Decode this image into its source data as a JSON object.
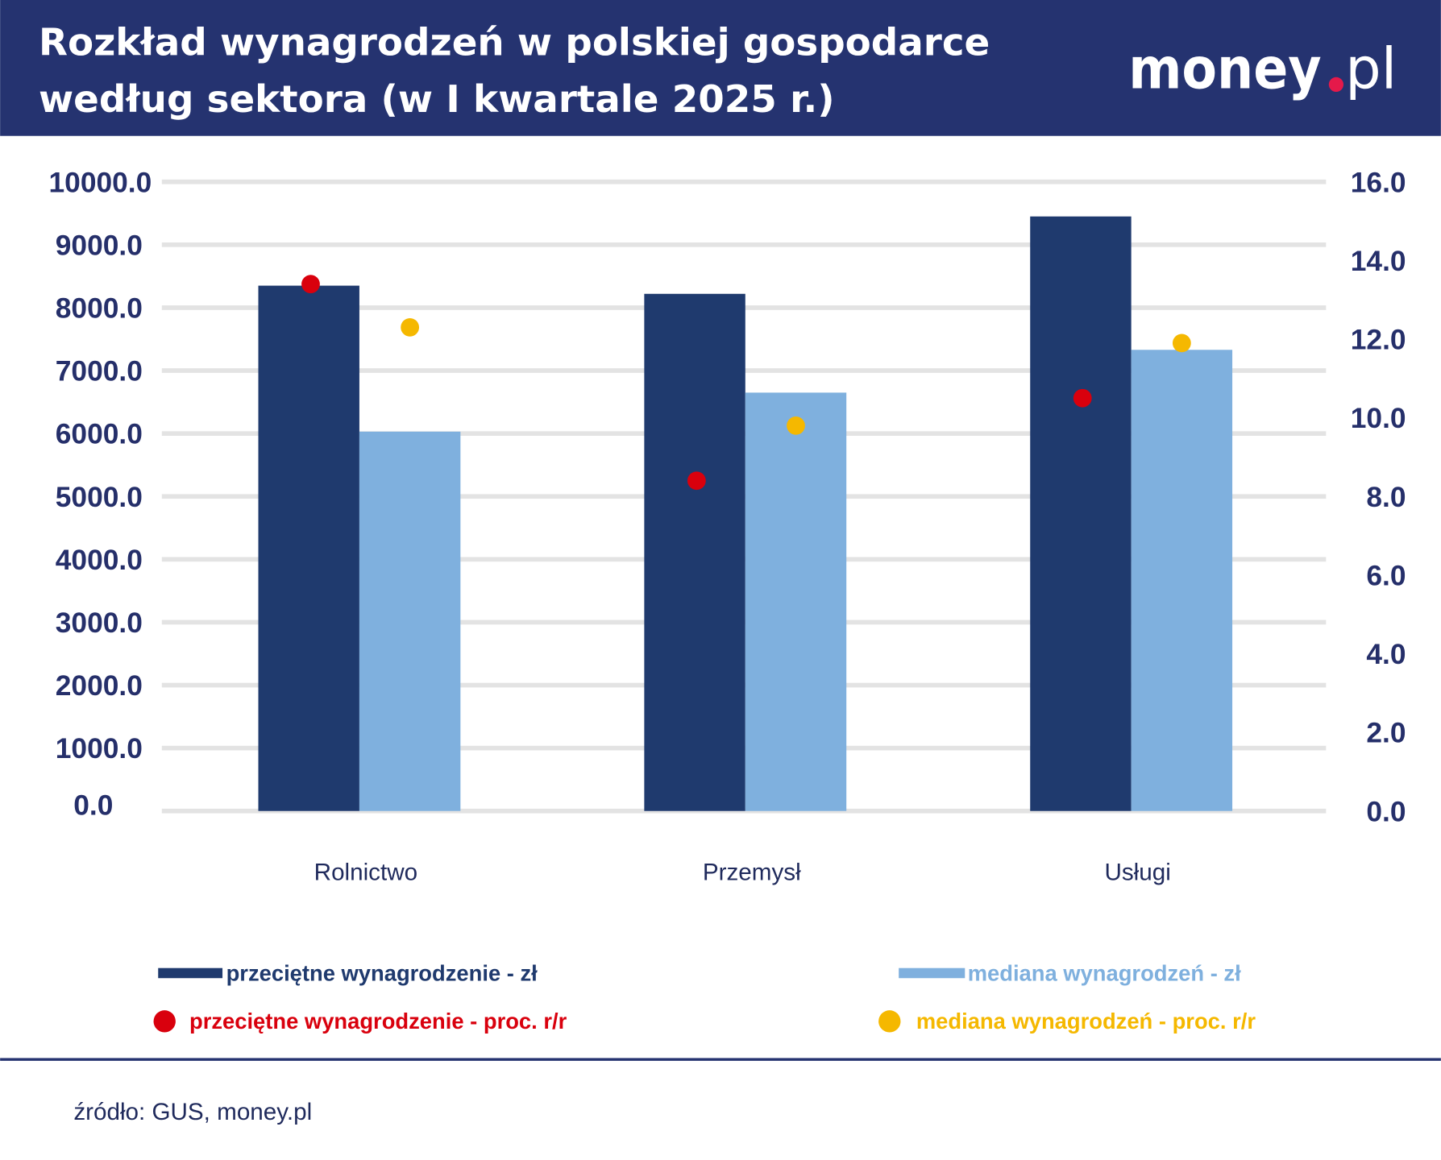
{
  "header": {
    "title_line1": "Rozkład wynagrodzeń w polskiej gospodarce",
    "title_line2": "według sektora (w I kwartale 2025 r.)",
    "logo_text": "money.pl"
  },
  "colors": {
    "header_bg": "#253370",
    "avg_bar": "#1f3a6e",
    "median_bar": "#7fb0de",
    "avg_pct": "#d9000d",
    "median_pct": "#f5b800",
    "grid": "#e3e3e3"
  },
  "chart_data": {
    "type": "bar",
    "categories": [
      "Rolnictwo",
      "Przemysł",
      "Usługi"
    ],
    "series": [
      {
        "name": "przeciętne wynagrodzenie - zł",
        "type": "bar",
        "axis": "left",
        "values": [
          8350,
          8220,
          9450
        ]
      },
      {
        "name": "mediana wynagrodzeń - zł",
        "type": "bar",
        "axis": "left",
        "values": [
          6030,
          6650,
          7330
        ]
      },
      {
        "name": "przeciętne wynagrodzenie - proc. r/r",
        "type": "scatter",
        "axis": "right",
        "values": [
          13.4,
          8.4,
          10.5
        ]
      },
      {
        "name": "mediana wynagrodzeń - proc. r/r",
        "type": "scatter",
        "axis": "right",
        "values": [
          12.3,
          9.8,
          11.9
        ]
      }
    ],
    "y_left": {
      "range": [
        0,
        10000
      ],
      "ticks": [
        "0.0",
        "1000.0",
        "2000.0",
        "3000.0",
        "4000.0",
        "5000.0",
        "6000.0",
        "7000.0",
        "8000.0",
        "9000.0",
        "10000.0"
      ]
    },
    "y_right": {
      "range": [
        0,
        16
      ],
      "ticks": [
        "0.0",
        "2.0",
        "4.0",
        "6.0",
        "8.0",
        "10.0",
        "12.0",
        "14.0",
        "16.0"
      ]
    },
    "grid": true,
    "legend_position": "bottom"
  },
  "footer": {
    "source": "źródło: GUS, money.pl"
  }
}
